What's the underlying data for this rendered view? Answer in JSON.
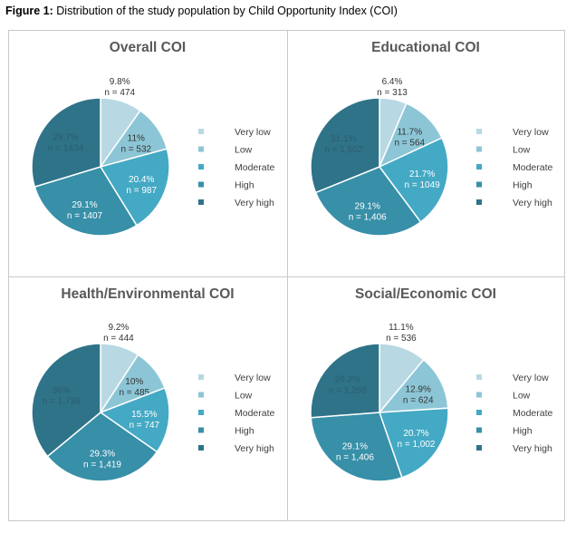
{
  "caption": {
    "bold": "Figure 1:",
    "text": " Distribution of the study population by Child Opportunity Index (COI)"
  },
  "colors": [
    "#b8d9e3",
    "#8cc6d6",
    "#44a9c4",
    "#378fa8",
    "#2f7389"
  ],
  "chart_data": [
    {
      "type": "pie",
      "title": "Overall COI",
      "categories": [
        "Very low",
        "Low",
        "Moderate",
        "High",
        "Very high"
      ],
      "values": [
        9.8,
        11,
        20.4,
        29.1,
        29.7
      ],
      "labels": [
        [
          "9.8%",
          "n = 474"
        ],
        [
          "11%",
          "n = 532"
        ],
        [
          "20.4%",
          "n = 987"
        ],
        [
          "29.1%",
          "n = 1407"
        ],
        [
          "29.7%",
          "n = 1434"
        ]
      ]
    },
    {
      "type": "pie",
      "title": "Educational COI",
      "categories": [
        "Very low",
        "Low",
        "Moderate",
        "High",
        "Very high"
      ],
      "values": [
        6.4,
        11.7,
        21.7,
        29.1,
        31.1
      ],
      "labels": [
        [
          "6.4%",
          "n = 313"
        ],
        [
          "11.7%",
          "n = 564"
        ],
        [
          "21.7%",
          "n = 1049"
        ],
        [
          "29.1%",
          "n = 1,406"
        ],
        [
          "31.1%",
          "n = 1,502"
        ]
      ]
    },
    {
      "type": "pie",
      "title": "Health/Environmental COI",
      "categories": [
        "Very low",
        "Low",
        "Moderate",
        "High",
        "Very high"
      ],
      "values": [
        9.2,
        10,
        15.5,
        29.3,
        36
      ],
      "labels": [
        [
          "9.2%",
          "n = 444"
        ],
        [
          "10%",
          "n = 485"
        ],
        [
          "15.5%",
          "n = 747"
        ],
        [
          "29.3%",
          "n = 1,419"
        ],
        [
          "36%",
          "n = 1,739"
        ]
      ]
    },
    {
      "type": "pie",
      "title": "Social/Economic COI",
      "categories": [
        "Very low",
        "Low",
        "Moderate",
        "High",
        "Very high"
      ],
      "values": [
        11.1,
        12.9,
        20.7,
        29.1,
        26.2
      ],
      "labels": [
        [
          "11.1%",
          "n = 536"
        ],
        [
          "12.9%",
          "n = 624"
        ],
        [
          "20.7%",
          "n = 1,002"
        ],
        [
          "29.1%",
          "n = 1,406"
        ],
        [
          "26.2%",
          "n = 1,266"
        ]
      ]
    }
  ]
}
